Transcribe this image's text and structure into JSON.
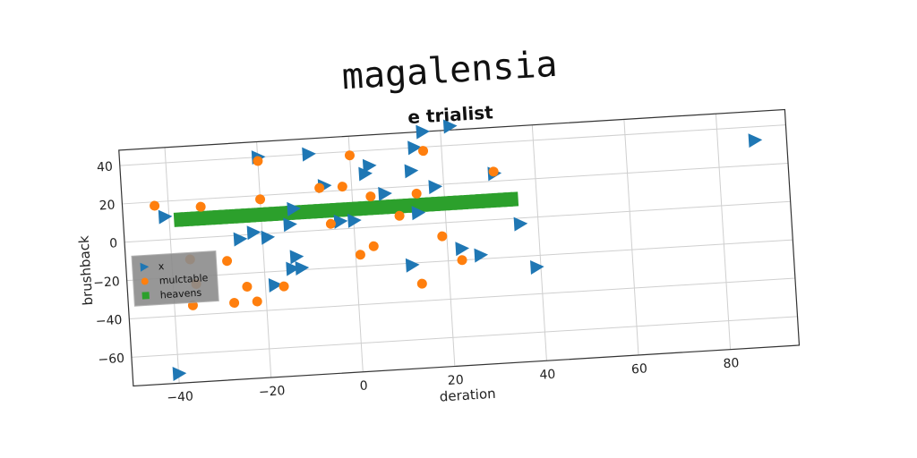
{
  "header": {
    "suptitle": "magalensia",
    "title": "e trialist"
  },
  "chart_data": {
    "type": "scatter",
    "title": "e trialist",
    "xlabel": "deration",
    "ylabel": "brushback",
    "xlim": [
      -50,
      95
    ],
    "ylim": [
      -75,
      48
    ],
    "xticks": [
      -40,
      -20,
      0,
      20,
      40,
      60,
      80
    ],
    "yticks": [
      -60,
      -40,
      -20,
      0,
      20,
      40
    ],
    "grid": true,
    "legend_position": "center-left",
    "series": [
      {
        "name": "x",
        "marker": "triangle-right",
        "color": "#1f77b4",
        "points": [
          [
            -20,
            40
          ],
          [
            -9,
            40
          ],
          [
            -6,
            23
          ],
          [
            16,
            48
          ],
          [
            22,
            50
          ],
          [
            14,
            40
          ],
          [
            4,
            32
          ],
          [
            3,
            28
          ],
          [
            13,
            28
          ],
          [
            18,
            19
          ],
          [
            7,
            17
          ],
          [
            31,
            24
          ],
          [
            -41,
            12
          ],
          [
            -13,
            12
          ],
          [
            -22,
            1
          ],
          [
            -25,
            -2
          ],
          [
            -19,
            -2
          ],
          [
            -14,
            4
          ],
          [
            0,
            4
          ],
          [
            14,
            6
          ],
          [
            -18,
            -27
          ],
          [
            -13,
            -13
          ],
          [
            -14,
            -19
          ],
          [
            -12,
            -19
          ],
          [
            12,
            -21
          ],
          [
            23,
            -14
          ],
          [
            27,
            -18
          ],
          [
            36,
            -3
          ],
          [
            39,
            -26
          ],
          [
            -40,
            -70
          ],
          [
            88,
            33
          ],
          [
            -3,
            4
          ]
        ]
      },
      {
        "name": "mulctable",
        "marker": "circle",
        "color": "#ff7f0e",
        "points": [
          [
            -43,
            18
          ],
          [
            -33,
            16
          ],
          [
            -20,
            38
          ],
          [
            -20,
            18
          ],
          [
            -7,
            22
          ],
          [
            -2,
            22
          ],
          [
            0,
            38
          ],
          [
            16,
            38
          ],
          [
            31,
            25
          ],
          [
            4,
            16
          ],
          [
            14,
            16
          ],
          [
            -36,
            -11
          ],
          [
            -35,
            -24
          ],
          [
            -28,
            -13
          ],
          [
            -24,
            -27
          ],
          [
            -36,
            -35
          ],
          [
            -27,
            -35
          ],
          [
            -22,
            -35
          ],
          [
            -16,
            -28
          ],
          [
            -5,
            3
          ],
          [
            1,
            -14
          ],
          [
            4,
            -10
          ],
          [
            10,
            5
          ],
          [
            19,
            -7
          ],
          [
            23,
            -20
          ],
          [
            14,
            -31
          ]
        ]
      },
      {
        "name": "heavens",
        "marker": "square",
        "color": "#2ca02c",
        "line_from": [
          -38,
          10
        ],
        "line_to": [
          35,
          10
        ]
      }
    ]
  }
}
